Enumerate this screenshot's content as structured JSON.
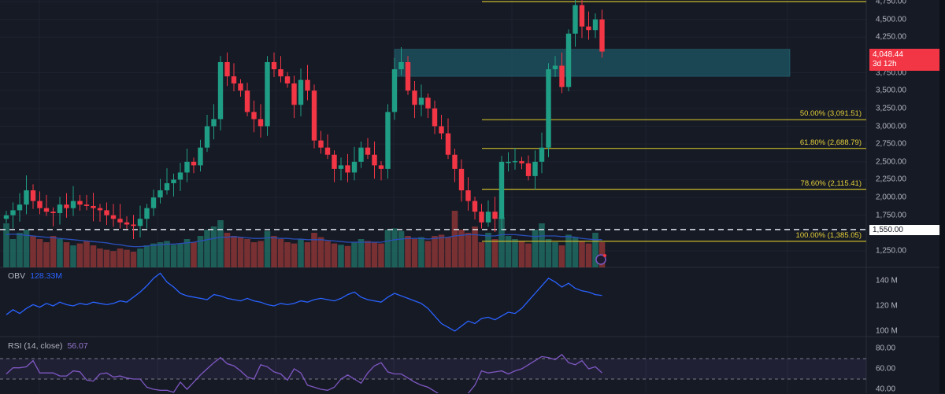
{
  "colors": {
    "up": "#1f9e85",
    "down": "#f23645",
    "vol_up": "#1e6b62",
    "vol_down": "#8a3535",
    "fib": "#c9b92a",
    "zone": "#1d5663",
    "obv": "#2962ff",
    "rsi": "#7e57c2",
    "ma": "#2a4fb8"
  },
  "price_axis": {
    "ticks": [
      "4,750.00",
      "4,500.00",
      "4,250.00",
      "3,750.00",
      "3,500.00",
      "3,250.00",
      "3,000.00",
      "2,750.00",
      "2,500.00",
      "2,250.00",
      "2,000.00",
      "1,750.00",
      "1,250.00"
    ],
    "tick_values": [
      4750,
      4500,
      4250,
      3750,
      3500,
      3250,
      3000,
      2750,
      2500,
      2250,
      2000,
      1750,
      1250
    ]
  },
  "current_price": {
    "value": "4,048.44",
    "countdown": "3d 12h"
  },
  "horizontal_line": {
    "label": "1,550.00",
    "value": 1550
  },
  "fib_levels": [
    {
      "label": "",
      "value": 4750
    },
    {
      "label": "50.00% (3,091.51)",
      "value": 3091.51
    },
    {
      "label": "61.80% (2,688.79)",
      "value": 2688.79
    },
    {
      "label": "78.60% (2,115.41)",
      "value": 2115.41
    },
    {
      "label": "100.00% (1,385.05)",
      "value": 1385.05
    }
  ],
  "zone": {
    "top": 4080,
    "bottom": 3700
  },
  "obv": {
    "title": "OBV",
    "value": "128.33M",
    "axis": [
      "140 M",
      "120 M",
      "100 M"
    ],
    "axis_values": [
      140,
      120,
      100
    ],
    "series": [
      113,
      117,
      114,
      118,
      121,
      119,
      122,
      120,
      123,
      121,
      120,
      122,
      121,
      123,
      122,
      121,
      122,
      124,
      123,
      127,
      131,
      136,
      142,
      146,
      139,
      135,
      130,
      128,
      127,
      126,
      125,
      129,
      128,
      126,
      125,
      124,
      126,
      124,
      123,
      121,
      120,
      122,
      121,
      122,
      124,
      123,
      125,
      126,
      125,
      124,
      126,
      129,
      131,
      127,
      125,
      124,
      123,
      127,
      130,
      128,
      126,
      124,
      122,
      118,
      112,
      106,
      103,
      100,
      104,
      108,
      106,
      110,
      111,
      109,
      112,
      115,
      114,
      118,
      124,
      130,
      136,
      142,
      139,
      135,
      138,
      134,
      132,
      131,
      129,
      128.3
    ]
  },
  "rsi": {
    "title": "RSI (14, close)",
    "value": "56.07",
    "axis": [
      "80.00",
      "60.00",
      "40.00"
    ],
    "axis_values": [
      80,
      60,
      40
    ],
    "upper_band": 70,
    "lower_band": 50,
    "series": [
      55,
      61,
      61,
      62,
      68,
      56,
      56,
      56,
      53,
      53,
      58,
      57,
      49,
      48,
      55,
      56,
      52,
      53,
      51,
      50,
      50,
      42,
      40,
      39,
      39,
      37,
      47,
      40,
      47,
      54,
      60,
      66,
      71,
      65,
      63,
      58,
      52,
      50,
      64,
      62,
      57,
      55,
      49,
      60,
      56,
      44,
      42,
      40,
      39,
      42,
      50,
      54,
      50,
      46,
      56,
      63,
      66,
      57,
      55,
      55,
      51,
      47,
      44,
      42,
      38,
      34,
      32,
      30,
      30,
      36,
      44,
      58,
      56,
      57,
      58,
      55,
      58,
      60,
      64,
      68,
      72,
      71,
      69,
      74,
      66,
      64,
      68,
      60,
      62,
      56.07
    ]
  },
  "candles": {
    "closes": [
      1750,
      1820,
      1900,
      2100,
      1950,
      1850,
      1800,
      1780,
      1900,
      1850,
      1950,
      1900,
      1880,
      1850,
      1820,
      1750,
      1700,
      1650,
      1620,
      1600,
      1700,
      1850,
      2000,
      2100,
      2200,
      2250,
      2350,
      2500,
      2450,
      2700,
      3000,
      3100,
      3900,
      3700,
      3600,
      3500,
      3200,
      3100,
      3000,
      3900,
      3800,
      3700,
      3600,
      3300,
      3650,
      3500,
      2800,
      2700,
      2600,
      2400,
      2450,
      2350,
      2500,
      2700,
      2600,
      2450,
      2400,
      3200,
      3800,
      3900,
      3500,
      3300,
      3400,
      3250,
      3000,
      2900,
      2600,
      2400,
      2100,
      1950,
      1800,
      1650,
      1800,
      1700,
      2500,
      2500,
      2510,
      2480,
      2300,
      2500,
      2700,
      3800,
      3850,
      3550,
      4300,
      4700,
      4400,
      4350,
      4500,
      4048.44
    ],
    "first_open": 1700,
    "volumes": [
      70,
      45,
      55,
      60,
      50,
      45,
      40,
      50,
      45,
      40,
      35,
      38,
      42,
      35,
      30,
      28,
      26,
      30,
      28,
      25,
      30,
      35,
      38,
      40,
      42,
      36,
      38,
      45,
      40,
      50,
      60,
      65,
      75,
      55,
      50,
      48,
      45,
      40,
      42,
      58,
      50,
      45,
      40,
      38,
      45,
      40,
      55,
      48,
      42,
      38,
      36,
      34,
      40,
      45,
      42,
      40,
      38,
      60,
      62,
      58,
      50,
      45,
      48,
      42,
      50,
      52,
      48,
      90,
      60,
      55,
      65,
      40,
      55,
      45,
      80,
      50,
      45,
      42,
      38,
      60,
      70,
      45,
      40,
      35,
      52,
      48,
      42,
      38,
      55,
      40
    ],
    "ma": [
      52,
      53,
      52,
      51,
      50,
      49,
      48,
      47,
      46,
      45,
      44,
      43,
      42,
      41,
      40,
      39,
      37,
      36,
      34,
      33,
      33,
      34,
      35,
      36,
      37,
      37,
      38,
      39,
      40,
      42,
      44,
      46,
      48,
      48,
      49,
      48,
      47,
      46,
      46,
      47,
      47,
      46,
      46,
      45,
      45,
      44,
      44,
      44,
      43,
      42,
      41,
      40,
      40,
      40,
      40,
      40,
      40,
      42,
      44,
      45,
      46,
      46,
      46,
      45,
      46,
      47,
      48,
      50,
      51,
      52,
      52,
      51,
      50,
      50,
      52,
      52,
      52,
      51,
      50,
      49,
      50,
      50,
      50,
      49,
      49,
      48,
      46,
      45,
      44,
      44
    ]
  }
}
